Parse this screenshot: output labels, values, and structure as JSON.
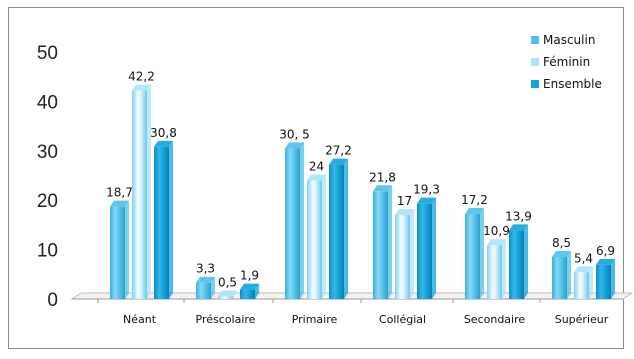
{
  "chart_data": {
    "type": "bar",
    "title": "",
    "xlabel": "",
    "ylabel": "",
    "ylim": [
      0,
      50
    ],
    "yticks": [
      "0",
      "10",
      "20",
      "30",
      "40",
      "50"
    ],
    "categories": [
      "Néant",
      "Préscolaire",
      "Primaire",
      "Collégial",
      "Secondaire",
      "Supérieur"
    ],
    "series": [
      {
        "name": "Masculin",
        "color": "#4fc0e6",
        "values": [
          18.7,
          3.3,
          30.5,
          21.8,
          17.2,
          8.5
        ],
        "labels": [
          "18,7",
          "3,3",
          "30, 5",
          "21,8",
          "17,2",
          "8,5"
        ]
      },
      {
        "name": "Féminin",
        "color": "#a9e4f7",
        "values": [
          42.2,
          0.5,
          24,
          17,
          10.9,
          5.4
        ],
        "labels": [
          "42,2",
          "0,5",
          "24",
          "17",
          "10,9",
          "5,4"
        ]
      },
      {
        "name": "Ensemble",
        "color": "#12a3d9",
        "values": [
          30.8,
          1.9,
          27.2,
          19.3,
          13.9,
          6.9
        ],
        "labels": [
          "30,8",
          "1,9",
          "27,2",
          "19,3",
          "13,9",
          "6,9"
        ]
      }
    ],
    "legend_position": "top-right",
    "grid": false
  }
}
